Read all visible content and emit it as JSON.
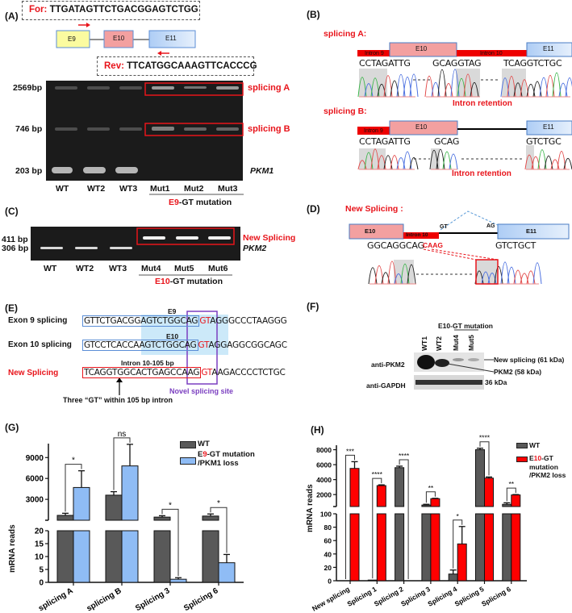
{
  "panel_labels": {
    "a": "(A)",
    "b": "(B)",
    "c": "(C)",
    "d": "(D)",
    "e": "(E)",
    "f": "(F)",
    "g": "(G)",
    "h": "(H)"
  },
  "panel_a": {
    "forward_label": "For:",
    "forward_seq": "TTGATAGTTCTGACGGAGTCTGG",
    "reverse_label": "Rev:",
    "reverse_seq": "TTCATGGCAAAGTTCACCCG",
    "exons": [
      "E9",
      "E10",
      "E11"
    ],
    "size_markers": [
      "2569bp",
      "746 bp",
      "203 bp"
    ],
    "band_labels": [
      "splicing A",
      "splicing B",
      "PKM1"
    ],
    "lanes": [
      "WT",
      "WT2",
      "WT3",
      "Mut1",
      "Mut2",
      "Mut3"
    ],
    "group_prefix": "E9",
    "group_suffix": "-GT mutation"
  },
  "panel_b": {
    "splicing_a_title": "splicing A:",
    "splicing_b_title": "splicing B:",
    "intron9": "Intron 9",
    "intron10": "Intron 10",
    "e10": "E10",
    "e11": "E11",
    "a_seqs": [
      "CCTAGATTG",
      "GCAGGTAG",
      "TCAGGTCTGC"
    ],
    "b_seqs": [
      "CCTAGATTG",
      "GCAG",
      "GTCTGC"
    ],
    "retention_label": "Intron retention"
  },
  "panel_c": {
    "size_markers": [
      "411 bp",
      "306 bp"
    ],
    "band_labels": [
      "New Splicing",
      "PKM2"
    ],
    "lanes": [
      "WT",
      "WT2",
      "WT3",
      "Mut4",
      "Mut5",
      "Mut6"
    ],
    "group_prefix": "E10",
    "group_suffix": "-GT mutation"
  },
  "panel_d": {
    "title": "New Splicing :",
    "e10": "E10",
    "intron10": "Intron 10",
    "e11": "E11",
    "gt": "GT",
    "ag": "AG",
    "seq_left": "GGCAGGCAG",
    "seq_mid": "CAAG",
    "seq_right": "GTCTGCT"
  },
  "panel_e": {
    "rows": [
      {
        "label": "Exon 9 splicing",
        "boxed": "GTTCTGACGGAGTCTGGCAG",
        "gt": "GT",
        "rest": "AGGGCCCTAAGGG",
        "tag": "E9"
      },
      {
        "label": "Exon 10 splicing",
        "boxed": "GTCCTCACCAAGTCTGGCAG",
        "gt": "GT",
        "rest": "AGGAGGCGGCAGC",
        "tag": "E10"
      },
      {
        "label": "New Splicing",
        "boxed": "TCAGGTGGCACTGAGCCAAG",
        "gt": "GT",
        "rest": "AAGACCCCTCTGC",
        "tag": "Intron 10-105 bp"
      }
    ],
    "novel_site": "Novel splicing site",
    "note": "Three “GT” within 105 bp intron"
  },
  "panel_f": {
    "group": "E10-GT mutation",
    "lanes": [
      "WT1",
      "WT2",
      "Mut4",
      "Mut5"
    ],
    "blots": [
      "anti-PKM2",
      "anti-GAPDH"
    ],
    "bands": [
      "New splicing (61 kDa)",
      "PKM2 (58 kDa)",
      "36 kDa"
    ]
  },
  "colors": {
    "red": "#e8141b",
    "wt_bar": "#595959",
    "g_mut_bar": "#8fbcf5",
    "h_mut_bar": "#ff0000",
    "purple": "#7b3fc0",
    "exon_blue": "#5b8ed6"
  },
  "chart_data": [
    {
      "id": "G",
      "type": "bar",
      "broken_axis": true,
      "ylabel": "mRNA reads",
      "categories": [
        "splicing A",
        "splicing B",
        "Splicing 3",
        "Splicing 6"
      ],
      "ylim_lower": [
        0,
        20
      ],
      "yticks_lower": [
        0,
        5,
        10,
        15,
        20
      ],
      "ylim_upper": [
        0,
        11000
      ],
      "yticks_upper": [
        3000,
        6000,
        9000
      ],
      "series": [
        {
          "name": "WT",
          "values": [
            700,
            3600,
            450,
            600
          ],
          "errors": [
            300,
            500,
            200,
            300
          ]
        },
        {
          "name": "E9-GT mutation /PKM1 loss",
          "name_parts": [
            "E",
            "9",
            "-GT mutation",
            "/PKM1 loss"
          ],
          "values": [
            4700,
            7800,
            1.2,
            7.6
          ],
          "errors": [
            2400,
            3100,
            0.6,
            3.2
          ]
        }
      ],
      "significance": [
        "*",
        "ns",
        "*",
        "*"
      ]
    },
    {
      "id": "H",
      "type": "bar",
      "broken_axis": true,
      "ylabel": "mRNA reads",
      "categories": [
        "New splicing",
        "Splicing 1",
        "Splicing 2",
        "Splicing 3",
        "Splicing 4",
        "Splicing 5",
        "Splicing 6"
      ],
      "ylim_lower": [
        0,
        100
      ],
      "yticks_lower": [
        0,
        20,
        40,
        60,
        80,
        100
      ],
      "ylim_upper": [
        400,
        8600
      ],
      "yticks_upper": [
        2000,
        4000,
        6000,
        8000
      ],
      "series": [
        {
          "name": "WT",
          "values": [
            0,
            1,
            5600,
            600,
            10,
            8000,
            700
          ],
          "errors": [
            0,
            0,
            200,
            100,
            6,
            200,
            200
          ]
        },
        {
          "name": "E10-GT mutation /PKM2 loss",
          "name_parts": [
            "E",
            "10",
            "-GT",
            "mutation",
            "/PKM2 loss"
          ],
          "values": [
            5500,
            3200,
            0,
            1450,
            55,
            4200,
            1950
          ],
          "errors": [
            900,
            100,
            0,
            50,
            26,
            150,
            50
          ]
        }
      ],
      "significance": [
        "***",
        "****",
        "****",
        "**",
        "*",
        "****",
        "**"
      ]
    }
  ]
}
